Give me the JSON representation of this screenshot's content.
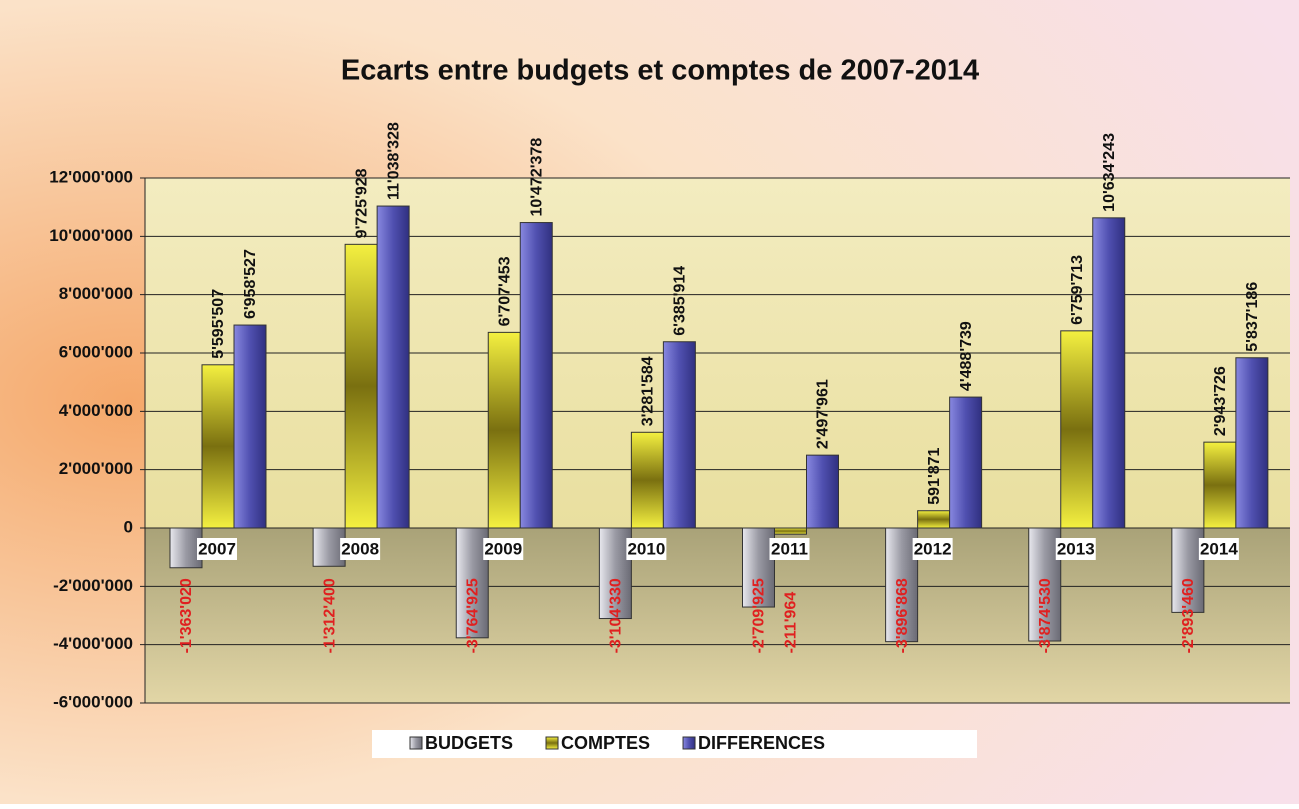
{
  "chart_data": {
    "type": "bar",
    "title": "Ecarts entre budgets et comptes de 2007-2014",
    "categories": [
      "2007",
      "2008",
      "2009",
      "2010",
      "2011",
      "2012",
      "2013",
      "2014"
    ],
    "series": [
      {
        "name": "BUDGETS",
        "color": "#b0b0b8",
        "values": [
          -1363020,
          -1312400,
          -3764925,
          -3104330,
          -2709925,
          -3896868,
          -3874530,
          -2893460
        ],
        "value_labels": [
          "-1'363'020",
          "-1'312'400",
          "-3'764'925",
          "-3'104'330",
          "-2'709'925",
          "-3'896'868",
          "-3'874'530",
          "-2'893'460"
        ]
      },
      {
        "name": "COMPTES",
        "color": "#c8c020",
        "values": [
          5595507,
          9725928,
          6707453,
          3281584,
          -211964,
          591871,
          6759713,
          2943726
        ],
        "value_labels": [
          "5'595'507",
          "9'725'928",
          "6'707'453",
          "3'281'584",
          "-211'964",
          "591'871",
          "6'759'713",
          "2'943'726"
        ]
      },
      {
        "name": "DIFFERENCES",
        "color": "#5a5ab8",
        "values": [
          6958527,
          11038328,
          10472378,
          6385914,
          2497961,
          4488739,
          10634243,
          5837186
        ],
        "value_labels": [
          "6'958'527",
          "11'038'328",
          "10'472'378",
          "6'385'914",
          "2'497'961",
          "4'488'739",
          "10'634'243",
          "5'837'186"
        ]
      }
    ],
    "ylim": [
      -6000000,
      12000000
    ],
    "yticks": [
      {
        "value": -6000000,
        "label": "-6'000'000"
      },
      {
        "value": -4000000,
        "label": "-4'000'000"
      },
      {
        "value": -2000000,
        "label": "-2'000'000"
      },
      0,
      {
        "value": 2000000,
        "label": "2'000'000"
      },
      {
        "value": 4000000,
        "label": "4'000'000"
      },
      {
        "value": 6000000,
        "label": "6'000'000"
      },
      {
        "value": 8000000,
        "label": "8'000'000"
      },
      {
        "value": 10000000,
        "label": "10'000'000"
      },
      {
        "value": 12000000,
        "label": "12'000'000"
      }
    ],
    "grid": true,
    "legend": "bottom"
  }
}
